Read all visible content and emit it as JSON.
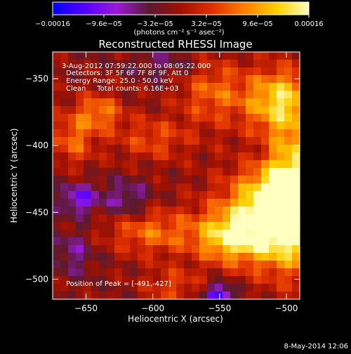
{
  "chart_data": {
    "type": "heatmap",
    "title": "Reconstructed RHESSI Image",
    "xlabel": "Heliocentric X (arcsec)",
    "ylabel": "Heliocentric Y (arcsec)",
    "xlim": [
      -675,
      -490
    ],
    "ylim": [
      -515,
      -330
    ],
    "x_ticks": [
      -650,
      -600,
      -550,
      -500
    ],
    "x_tick_labels": [
      "−650",
      "−600",
      "−550",
      "−500"
    ],
    "y_ticks": [
      -350,
      -400,
      -450,
      -500
    ],
    "y_tick_labels": [
      "−350",
      "−400",
      "−450",
      "−500"
    ],
    "colorbar": {
      "range": [
        -0.00016,
        0.00016
      ],
      "tick_values": [
        -0.00016,
        -9.6e-05,
        -3.2e-05,
        3.2e-05,
        9.6e-05,
        0.00016
      ],
      "tick_labels": [
        "−0.00016",
        "−9.6e−05",
        "−3.2e−05",
        "3.2e−05",
        "9.6e−05",
        "0.00016"
      ],
      "units": "(photons cm⁻² s⁻¹ asec⁻²)",
      "colors": [
        "#0000ff",
        "#5500ff",
        "#9a1bd8",
        "#5a1a30",
        "#a01000",
        "#e03000",
        "#ff8000",
        "#ffd000",
        "#ffffc0"
      ]
    },
    "annotations": [
      "3-Aug-2012 07:59:22.000 to 08:05:22.000",
      "Detectors: 3F 5F 6F 7F 8F 9F, Att 0",
      "Energy Range: 25.0 - 50.0 keV",
      "Clean     Total counts: 6.16E+03"
    ],
    "peak_label": "Position of Peak = [-491,-427]",
    "peak_position": [
      -491,
      -427
    ],
    "footer_date": "8-May-2014 12:06",
    "image_grid": {
      "nx": 32,
      "ny": 32,
      "blobs": [
        {
          "x": -493,
          "y": -435,
          "amp": 0.000165,
          "sx": 22,
          "sy": 38
        },
        {
          "x": -515,
          "y": -455,
          "amp": 0.00014,
          "sx": 28,
          "sy": 22
        },
        {
          "x": -505,
          "y": -365,
          "amp": 0.00012,
          "sx": 18,
          "sy": 16
        },
        {
          "x": -545,
          "y": -470,
          "amp": 9.5e-05,
          "sx": 16,
          "sy": 12
        },
        {
          "x": -600,
          "y": -465,
          "amp": 8e-05,
          "sx": 25,
          "sy": 12
        },
        {
          "x": -640,
          "y": -375,
          "amp": 8.5e-05,
          "sx": 12,
          "sy": 10
        },
        {
          "x": -555,
          "y": -360,
          "amp": 7.5e-05,
          "sx": 18,
          "sy": 18
        },
        {
          "x": -660,
          "y": -395,
          "amp": 7.5e-05,
          "sx": 12,
          "sy": 14
        },
        {
          "x": -600,
          "y": -395,
          "amp": 6e-05,
          "sx": 20,
          "sy": 12
        },
        {
          "x": -585,
          "y": -505,
          "amp": 5.5e-05,
          "sx": 15,
          "sy": 10
        },
        {
          "x": -655,
          "y": -440,
          "amp": -9e-05,
          "sx": 10,
          "sy": 8
        },
        {
          "x": -550,
          "y": -512,
          "amp": -0.00012,
          "sx": 8,
          "sy": 6
        },
        {
          "x": -620,
          "y": -440,
          "amp": -6e-05,
          "sx": 12,
          "sy": 10
        },
        {
          "x": -660,
          "y": -480,
          "amp": -5e-05,
          "sx": 12,
          "sy": 12
        },
        {
          "x": -590,
          "y": -340,
          "amp": -4e-05,
          "sx": 18,
          "sy": 8
        },
        {
          "x": -520,
          "y": -405,
          "amp": -3e-05,
          "sx": 10,
          "sy": 10
        }
      ]
    }
  }
}
